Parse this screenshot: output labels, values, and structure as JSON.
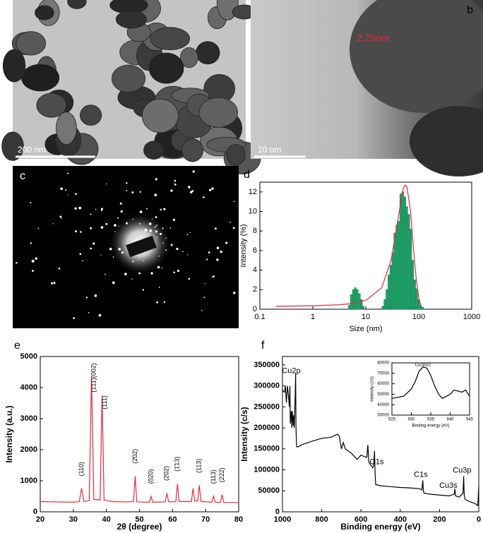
{
  "images": [
    {
      "scale_bar": "200 nm"
    },
    {
      "label": "b",
      "scale_bar": "10 nm",
      "annotation": "2.29nm"
    },
    {
      "label": "c"
    }
  ],
  "chart_data": [
    {
      "type": "histogram",
      "label": "d",
      "xlabel": "Size (nm)",
      "ylabel": "Intensity (%)",
      "xscale": "log",
      "xlim": [
        0.1,
        1000
      ],
      "xticks": [
        0.1,
        1,
        10,
        100,
        1000
      ],
      "ylim": [
        0,
        13
      ],
      "yticks": [
        0,
        2,
        4,
        6,
        8,
        10,
        12
      ],
      "color": "#1fa46b",
      "bins": [
        4.7,
        5.1,
        5.6,
        6.1,
        6.6,
        7.2,
        7.9,
        8.6,
        9.3,
        10.2,
        11.1,
        12.1,
        13.2,
        14.3,
        15.6,
        17.0,
        18.6,
        20.2,
        22.0,
        24.0,
        26.2,
        28.5,
        31.1,
        33.9,
        37.0,
        40.3,
        43.9,
        47.9,
        52.2,
        56.9,
        62.0,
        67.6,
        73.6,
        80.3,
        87.5,
        95.4,
        104,
        113,
        124
      ],
      "values": [
        0.4,
        1.5,
        2.0,
        2.2,
        2.0,
        1.6,
        1.0,
        0.3,
        0,
        0,
        0,
        0,
        0,
        0,
        0,
        0,
        0,
        0.3,
        1.0,
        2.0,
        3.5,
        4.5,
        5.8,
        7.8,
        8.6,
        9.0,
        11.8,
        12.0,
        11.5,
        10.5,
        9.7,
        8.2,
        5.0,
        3.0,
        2.1,
        1.0,
        0.4,
        0.2
      ],
      "fit": {
        "color": "#e8283c",
        "x": [
          0.2,
          1,
          3,
          5,
          10,
          20,
          30,
          40,
          50,
          55,
          60,
          70,
          80,
          90,
          100,
          110
        ],
        "y": [
          0.3,
          0.35,
          0.45,
          0.55,
          0.9,
          2.2,
          5,
          9,
          12.2,
          12.7,
          12.5,
          10,
          6,
          3,
          1.2,
          0.3
        ]
      }
    },
    {
      "type": "line",
      "label": "e",
      "xlabel": "2θ (degree)",
      "ylabel": "Intensity (a.u.)",
      "xlim": [
        20,
        80
      ],
      "xticks": [
        20,
        30,
        40,
        50,
        60,
        70,
        80
      ],
      "ylim": [
        0,
        5000
      ],
      "yticks": [
        0,
        1000,
        2000,
        3000,
        4000,
        5000
      ],
      "color": "#e8283c",
      "x": [
        20,
        25,
        30,
        31.8,
        32.5,
        33.2,
        34.8,
        35.5,
        36.2,
        38.1,
        38.7,
        39.3,
        42,
        46,
        48.2,
        48.7,
        49.2,
        53,
        53.5,
        54,
        57.8,
        58.3,
        58.8,
        61,
        61.5,
        62,
        65.7,
        66.2,
        66.7,
        67.6,
        68.1,
        68.6,
        71.9,
        72.4,
        72.9,
        74.5,
        75,
        75.5,
        80
      ],
      "values": [
        330,
        320,
        310,
        330,
        760,
        330,
        360,
        4350,
        400,
        380,
        3750,
        380,
        330,
        320,
        330,
        1150,
        320,
        310,
        500,
        310,
        320,
        600,
        320,
        330,
        900,
        330,
        330,
        750,
        350,
        350,
        850,
        330,
        310,
        500,
        310,
        300,
        550,
        300,
        300
      ],
      "annotations": [
        {
          "text": "(110)",
          "x": 32.5,
          "y": 1150
        },
        {
          "text": "(1̄11)(002)",
          "x": 36.3,
          "y": 3850
        },
        {
          "text": "(111)",
          "x": 39.6,
          "y": 3300
        },
        {
          "text": "(2̄02)",
          "x": 48.7,
          "y": 1550
        },
        {
          "text": "(020)",
          "x": 53.5,
          "y": 900
        },
        {
          "text": "(202)",
          "x": 58.3,
          "y": 1000
        },
        {
          "text": "(1̄13)",
          "x": 61.5,
          "y": 1300
        },
        {
          "text": "(113)",
          "x": 68.1,
          "y": 1250
        },
        {
          "text": "(113)",
          "x": 72.4,
          "y": 900
        },
        {
          "text": "(222)",
          "x": 75,
          "y": 950
        }
      ]
    },
    {
      "type": "line",
      "label": "f",
      "xlabel": "Binding energy (eV)",
      "ylabel": "Intensity (c/s)",
      "xlim": [
        1000,
        0
      ],
      "xticks": [
        1000,
        800,
        600,
        400,
        200,
        0
      ],
      "ylim": [
        0,
        370000
      ],
      "yticks": [
        0,
        50000,
        100000,
        150000,
        200000,
        250000,
        300000,
        350000
      ],
      "color": "#000000",
      "x": [
        1000,
        990,
        985,
        980,
        975,
        970,
        965,
        962,
        960,
        955,
        952,
        950,
        945,
        943,
        940,
        935,
        933,
        931,
        928,
        920,
        900,
        850,
        800,
        750,
        720,
        710,
        700,
        690,
        680,
        650,
        620,
        600,
        575,
        570,
        565,
        560,
        540,
        535,
        531,
        528,
        525,
        500,
        450,
        400,
        350,
        300,
        290,
        285,
        282,
        280,
        250,
        200,
        150,
        125,
        122,
        118,
        100,
        80,
        77,
        74,
        70,
        50,
        20,
        5,
        0
      ],
      "values": [
        290000,
        285000,
        300000,
        260000,
        300000,
        280000,
        250000,
        300000,
        210000,
        240000,
        200000,
        240000,
        205000,
        230000,
        200000,
        280000,
        330000,
        200000,
        155000,
        155000,
        160000,
        168000,
        175000,
        178000,
        185000,
        180000,
        150000,
        165000,
        150000,
        140000,
        125000,
        135000,
        130000,
        130000,
        160000,
        118000,
        105000,
        110000,
        145000,
        90000,
        65000,
        62000,
        60000,
        58000,
        57000,
        55000,
        52000,
        75000,
        50000,
        45000,
        42000,
        40000,
        38000,
        42000,
        55000,
        38000,
        35000,
        45000,
        85000,
        40000,
        30000,
        25000,
        20000,
        15000,
        60000
      ],
      "annotations": [
        {
          "text": "Cu2p",
          "x": 955,
          "y": 335000
        },
        {
          "text": "O1s",
          "x": 520,
          "y": 118000
        },
        {
          "text": "C1s",
          "x": 295,
          "y": 88000
        },
        {
          "text": "Cu3s",
          "x": 155,
          "y": 62000
        },
        {
          "text": "Cu3p",
          "x": 85,
          "y": 98000
        }
      ],
      "inset": {
        "xlabel": "Binding energy (eV)",
        "ylabel": "Intensity (c/s)",
        "xlim": [
          925,
          945
        ],
        "xticks": [
          925,
          930,
          935,
          940,
          945
        ],
        "ylim": [
          30000,
          80000
        ],
        "yticks": [
          30000,
          40000,
          50000,
          60000,
          70000,
          80000
        ],
        "color": "#000000",
        "x": [
          925,
          928,
          930,
          931,
          932,
          933,
          934,
          935,
          936,
          937,
          938,
          940,
          941,
          942,
          943,
          944,
          945
        ],
        "values": [
          46000,
          48000,
          55000,
          62000,
          72000,
          76000,
          75000,
          68000,
          58000,
          50000,
          46000,
          50000,
          54000,
          53000,
          52000,
          54000,
          48000
        ],
        "annotations": [
          {
            "text": "Cu2p3/2",
            "x": 933,
            "y": 78000
          }
        ]
      }
    }
  ]
}
